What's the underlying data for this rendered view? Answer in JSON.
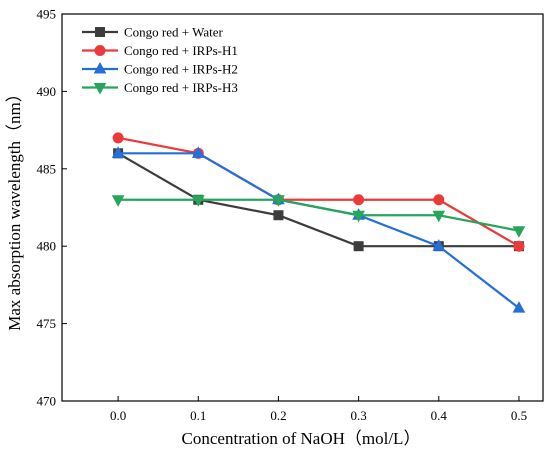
{
  "chart_data": {
    "type": "line",
    "xlabel": "Concentration of NaOH（mol/L）",
    "ylabel": "Max absorption wavelength（nm）",
    "x": [
      0.0,
      0.1,
      0.2,
      0.3,
      0.4,
      0.5
    ],
    "x_ticks": [
      "0.0",
      "0.1",
      "0.2",
      "0.3",
      "0.4",
      "0.5"
    ],
    "y_ticks": [
      "470",
      "475",
      "480",
      "485",
      "490",
      "495"
    ],
    "xlim": [
      -0.07,
      0.53
    ],
    "ylim": [
      470,
      495
    ],
    "grid": false,
    "legend_position": "top-left",
    "series": [
      {
        "name": "Congo red + Water",
        "color": "#3c3c3c",
        "marker": "square",
        "values": [
          486,
          483,
          482,
          480,
          480,
          480
        ]
      },
      {
        "name": "Congo red + IRPs-H1",
        "color": "#ec3a3a",
        "marker": "circle",
        "values": [
          487,
          486,
          483,
          483,
          483,
          480
        ]
      },
      {
        "name": "Congo red + IRPs-H2",
        "color": "#2470d8",
        "marker": "triangle-up",
        "values": [
          486,
          486,
          483,
          482,
          480,
          476
        ]
      },
      {
        "name": "Congo red + IRPs-H3",
        "color": "#26a65b",
        "marker": "triangle-down",
        "values": [
          483,
          483,
          483,
          482,
          482,
          481
        ]
      }
    ]
  }
}
